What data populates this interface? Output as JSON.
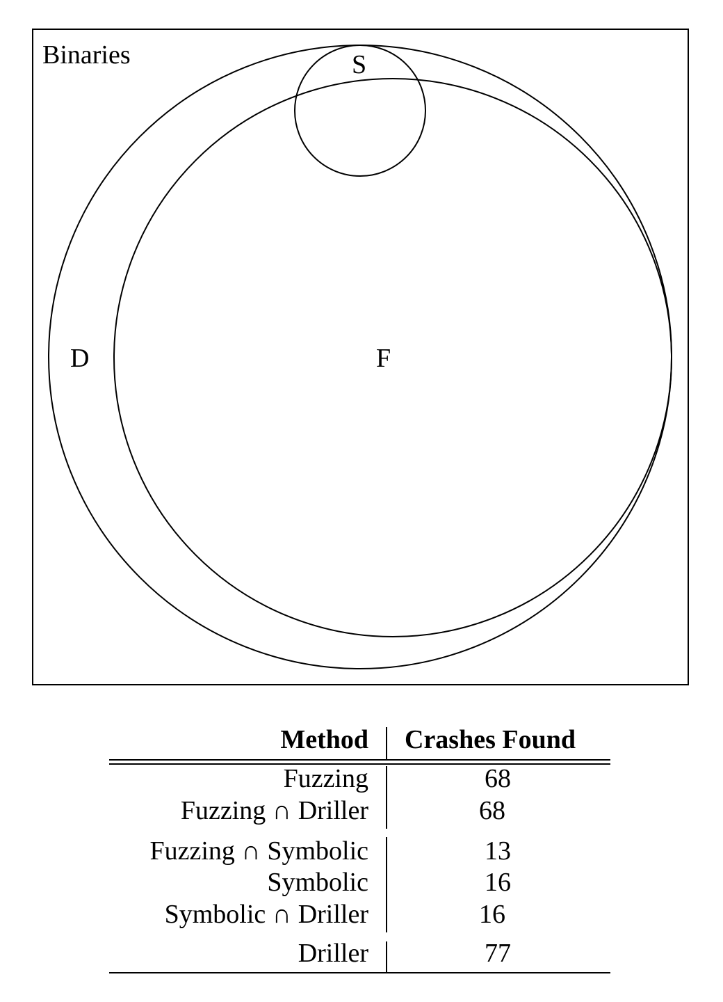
{
  "diagram": {
    "frame_label": "Binaries",
    "sets": [
      {
        "key": "D",
        "label": "D"
      },
      {
        "key": "F",
        "label": "F"
      },
      {
        "key": "S",
        "label": "S"
      }
    ]
  },
  "table": {
    "headers": {
      "method": "Method",
      "crashes": "Crashes Found"
    },
    "groups": [
      [
        {
          "method": "Fuzzing",
          "crashes": "68"
        },
        {
          "method": "Fuzzing ∩ Driller",
          "crashes": "68"
        }
      ],
      [
        {
          "method": "Fuzzing ∩ Symbolic",
          "crashes": "13"
        },
        {
          "method": "Symbolic",
          "crashes": "16"
        },
        {
          "method": "Symbolic ∩ Driller",
          "crashes": "16"
        }
      ],
      [
        {
          "method": "Driller",
          "crashes": "77"
        }
      ]
    ]
  }
}
